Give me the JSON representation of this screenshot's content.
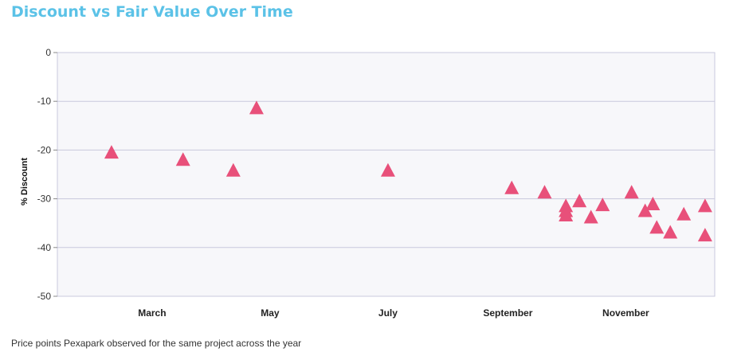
{
  "title": "Discount vs Fair Value Over Time",
  "caption": "Price points Pexapark observed for the same project across the year",
  "colors": {
    "title": "#5bc2e7",
    "marker": "#e8507a",
    "plot_bg": "#f7f7fa",
    "grid": "#c9c9dd"
  },
  "chart_data": {
    "type": "scatter",
    "title": "Discount vs Fair Value Over Time",
    "xlabel": "",
    "ylabel": "% Discount",
    "x_ticks": [
      {
        "label": "March",
        "date": "03-15"
      },
      {
        "label": "May",
        "date": "05-15"
      },
      {
        "label": "July",
        "date": "07-15"
      },
      {
        "label": "September",
        "date": "09-15"
      },
      {
        "label": "November",
        "date": "11-15"
      }
    ],
    "xlim": [
      "01-25",
      "12-31"
    ],
    "y_ticks": [
      0,
      -10,
      -20,
      -30,
      -40,
      -50
    ],
    "ylim": [
      -50,
      0
    ],
    "grid": true,
    "marker": "triangle",
    "points": [
      {
        "x": "02-22",
        "y": -20.6
      },
      {
        "x": "03-31",
        "y": -22.1
      },
      {
        "x": "04-26",
        "y": -24.3
      },
      {
        "x": "05-08",
        "y": -11.5
      },
      {
        "x": "07-15",
        "y": -24.3
      },
      {
        "x": "09-17",
        "y": -27.9
      },
      {
        "x": "10-04",
        "y": -28.8
      },
      {
        "x": "10-15",
        "y": -31.6
      },
      {
        "x": "10-15",
        "y": -32.6
      },
      {
        "x": "10-15",
        "y": -33.5
      },
      {
        "x": "10-22",
        "y": -30.6
      },
      {
        "x": "10-28",
        "y": -33.9
      },
      {
        "x": "11-03",
        "y": -31.4
      },
      {
        "x": "11-18",
        "y": -28.8
      },
      {
        "x": "11-25",
        "y": -32.6
      },
      {
        "x": "11-29",
        "y": -31.2
      },
      {
        "x": "12-01",
        "y": -36.0
      },
      {
        "x": "12-08",
        "y": -37.0
      },
      {
        "x": "12-15",
        "y": -33.3
      },
      {
        "x": "12-26",
        "y": -31.6
      },
      {
        "x": "12-26",
        "y": -37.6
      }
    ]
  }
}
